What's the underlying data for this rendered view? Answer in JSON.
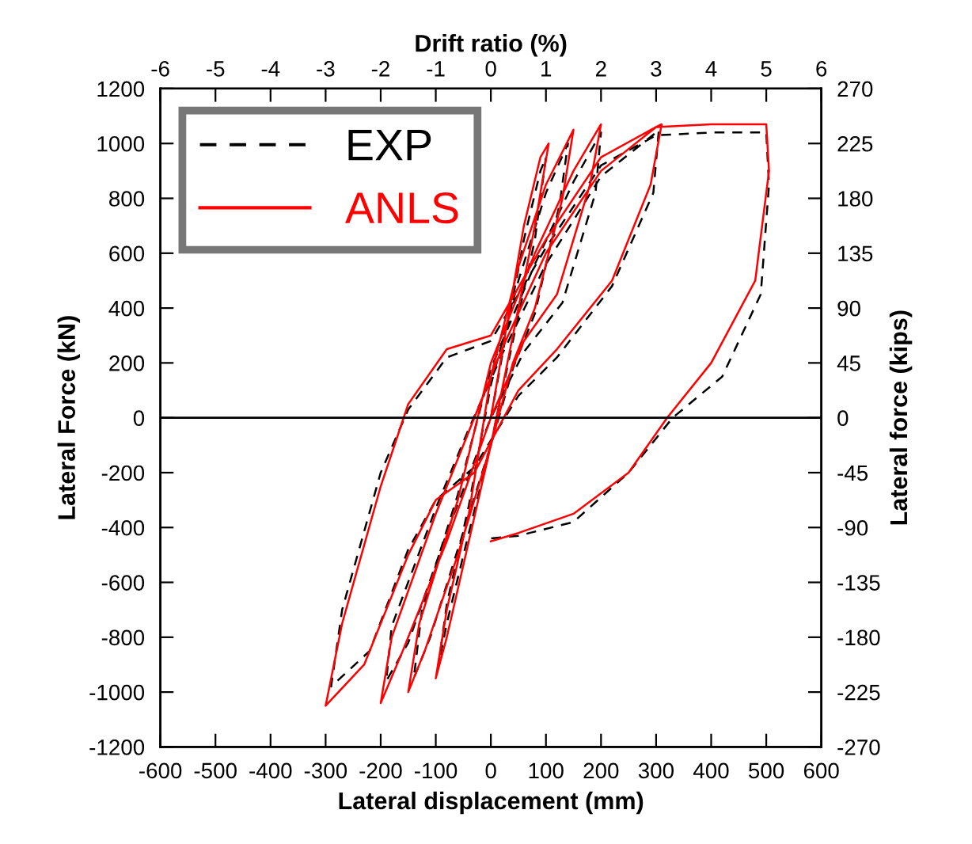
{
  "chart_data": {
    "type": "line",
    "xlabel": "Lateral displacement (mm)",
    "ylabel": "Lateral Force (kN)",
    "y2label": "Lateral force (kips)",
    "x2label": "Drift ratio (%)",
    "xlim": [
      -600,
      600
    ],
    "xticks": [
      -600,
      -500,
      -400,
      -300,
      -200,
      -100,
      0,
      100,
      200,
      300,
      400,
      500,
      600
    ],
    "ylim": [
      -1200,
      1200
    ],
    "yticks": [
      -1200,
      -1000,
      -800,
      -600,
      -400,
      -200,
      0,
      200,
      400,
      600,
      800,
      1000,
      1200
    ],
    "x2lim": [
      -6,
      6
    ],
    "x2ticks": [
      -6,
      -5,
      -4,
      -3,
      -2,
      -1,
      0,
      1,
      2,
      3,
      4,
      5,
      6
    ],
    "y2lim": [
      -270,
      270
    ],
    "y2ticks": [
      -270,
      -225,
      -180,
      -135,
      -90,
      -45,
      0,
      45,
      90,
      135,
      180,
      225,
      270
    ],
    "grid": false,
    "legend": "top left",
    "marker": "none",
    "ref_lines": [
      {
        "axis": "y",
        "value": 0,
        "color": "#000000"
      }
    ],
    "series": [
      {
        "name": "EXP",
        "color": "#000000",
        "line_style": "dashed",
        "x": [
          0,
          30,
          60,
          90,
          100,
          80,
          40,
          0,
          -40,
          -80,
          -95,
          -80,
          -40,
          0,
          50,
          100,
          140,
          125,
          80,
          40,
          0,
          -60,
          -110,
          -140,
          -125,
          -60,
          0,
          80,
          150,
          200,
          190,
          130,
          60,
          0,
          -80,
          -150,
          -190,
          -180,
          -100,
          -40,
          20,
          100,
          200,
          300,
          305,
          295,
          220,
          120,
          50,
          -30,
          -100,
          -150,
          -220,
          -290,
          -270,
          -200,
          -150,
          -80,
          0,
          100,
          200,
          300,
          400,
          500,
          505,
          490,
          420,
          330,
          250,
          150,
          50,
          0
        ],
        "values": [
          0,
          330,
          650,
          900,
          950,
          650,
          280,
          -100,
          -420,
          -750,
          -900,
          -680,
          -320,
          120,
          500,
          820,
          1000,
          780,
          380,
          180,
          -100,
          -480,
          -800,
          -950,
          -700,
          -280,
          180,
          560,
          860,
          1040,
          820,
          420,
          240,
          0,
          -420,
          -820,
          -960,
          -760,
          -330,
          -40,
          230,
          560,
          880,
          1040,
          1050,
          820,
          480,
          220,
          80,
          -180,
          -300,
          -480,
          -850,
          -980,
          -700,
          -200,
          30,
          220,
          280,
          620,
          920,
          1030,
          1040,
          1040,
          850,
          450,
          150,
          0,
          -200,
          -380,
          -430,
          -440
        ]
      },
      {
        "name": "ANLS",
        "color": "#ff0000",
        "line_style": "solid",
        "x": [
          0,
          30,
          60,
          90,
          105,
          80,
          40,
          0,
          -40,
          -80,
          -100,
          -80,
          -40,
          0,
          50,
          100,
          150,
          130,
          80,
          40,
          0,
          -60,
          -120,
          -150,
          -130,
          -60,
          0,
          80,
          150,
          200,
          180,
          120,
          60,
          0,
          -80,
          -160,
          -200,
          -180,
          -100,
          -40,
          20,
          100,
          200,
          300,
          310,
          290,
          220,
          120,
          50,
          -30,
          -100,
          -150,
          -230,
          -300,
          -270,
          -200,
          -150,
          -80,
          0,
          100,
          200,
          300,
          400,
          500,
          505,
          480,
          400,
          320,
          250,
          150,
          50,
          0
        ],
        "values": [
          0,
          350,
          700,
          950,
          1000,
          700,
          300,
          -100,
          -450,
          -800,
          -950,
          -700,
          -350,
          150,
          550,
          850,
          1050,
          800,
          400,
          200,
          -100,
          -500,
          -850,
          -1000,
          -750,
          -300,
          200,
          600,
          900,
          1070,
          850,
          450,
          280,
          0,
          -450,
          -850,
          -1040,
          -800,
          -350,
          -50,
          250,
          600,
          900,
          1060,
          1070,
          850,
          500,
          250,
          100,
          -200,
          -300,
          -500,
          -900,
          -1050,
          -750,
          -250,
          50,
          250,
          300,
          650,
          950,
          1060,
          1070,
          1070,
          900,
          500,
          200,
          0,
          -200,
          -350,
          -420,
          -450
        ]
      }
    ]
  }
}
